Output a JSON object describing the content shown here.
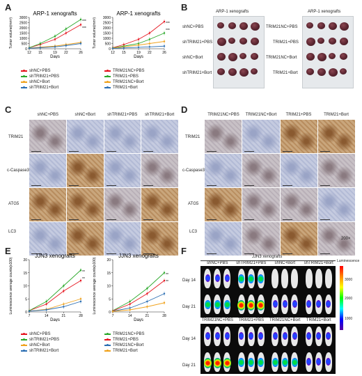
{
  "panels": {
    "A": "A",
    "B": "B",
    "C": "C",
    "D": "D",
    "E": "E",
    "F": "F"
  },
  "chart_data": [
    {
      "type": "line",
      "title": "ARP-1 xenografts",
      "xlabel": "Days",
      "ylabel": "Tumor volume(mm³)",
      "x": [
        12,
        15,
        19,
        22,
        26
      ],
      "xticks": [
        "12",
        "15",
        "19",
        "22",
        "26"
      ],
      "yticks": [
        "0",
        "500",
        "1000",
        "1500",
        "2000",
        "2500",
        "3000"
      ],
      "ylim": [
        0,
        3000
      ],
      "significance": [
        "***",
        "***"
      ],
      "series": [
        {
          "name": "shNC+PBS",
          "color": "#e6141e",
          "values": [
            100,
            400,
            900,
            1500,
            2300
          ]
        },
        {
          "name": "shTRIM21+PBS",
          "color": "#2aa82a",
          "values": [
            100,
            500,
            1200,
            1900,
            2800
          ]
        },
        {
          "name": "shNC+Bort",
          "color": "#f0a21c",
          "values": [
            50,
            150,
            250,
            400,
            600
          ]
        },
        {
          "name": "shTRIM21+Bort",
          "color": "#2c6fb3",
          "values": [
            50,
            100,
            180,
            300,
            500
          ]
        }
      ]
    },
    {
      "type": "line",
      "title": "ARP-1 xenografts",
      "xlabel": "Days",
      "ylabel": "Tumor volume(mm³)",
      "x": [
        12,
        15,
        19,
        22,
        26
      ],
      "xticks": [
        "12",
        "15",
        "19",
        "22",
        "26"
      ],
      "yticks": [
        "0",
        "500",
        "1000",
        "1500",
        "2000",
        "2500",
        "3000"
      ],
      "ylim": [
        0,
        3000
      ],
      "significance": [
        "***",
        "***"
      ],
      "series": [
        {
          "name": "TRIM21NC+PBS",
          "color": "#e6141e",
          "values": [
            100,
            400,
            900,
            1500,
            2600
          ]
        },
        {
          "name": "TRIM21+PBS",
          "color": "#2aa82a",
          "values": [
            80,
            250,
            500,
            900,
            1500
          ]
        },
        {
          "name": "TRIM21NC+Bort",
          "color": "#f0a21c",
          "values": [
            60,
            180,
            350,
            500,
            700
          ]
        },
        {
          "name": "TRIM21+Bort",
          "color": "#2c6fb3",
          "values": [
            40,
            80,
            140,
            180,
            250
          ]
        }
      ]
    },
    {
      "type": "line",
      "title": "JJN3 xenografts",
      "xlabel": "Days",
      "ylabel": "Luminescence average counts(x100)",
      "x": [
        7,
        14,
        21,
        28
      ],
      "xticks": [
        "7",
        "14",
        "21",
        "28"
      ],
      "yticks": [
        "0",
        "5",
        "10",
        "15",
        "20"
      ],
      "ylim": [
        0,
        20
      ],
      "significance": [
        "**",
        "**"
      ],
      "series": [
        {
          "name": "shNC+PBS",
          "color": "#e6141e",
          "values": [
            0.5,
            3,
            8,
            12
          ]
        },
        {
          "name": "shTRIM21+PBS",
          "color": "#2aa82a",
          "values": [
            0.5,
            4,
            10,
            16
          ]
        },
        {
          "name": "shNC+Bort",
          "color": "#f0a21c",
          "values": [
            0.3,
            1,
            3,
            5
          ]
        },
        {
          "name": "shTRIM21+Bort",
          "color": "#2c6fb3",
          "values": [
            0.3,
            0.8,
            2,
            4
          ]
        }
      ]
    },
    {
      "type": "line",
      "title": "JJN3 xenografts",
      "xlabel": "Days",
      "ylabel": "Luminescence average counts(x100)",
      "x": [
        7,
        14,
        21,
        28
      ],
      "xticks": [
        "7",
        "14",
        "21",
        "28"
      ],
      "yticks": [
        "0",
        "5",
        "10",
        "15",
        "20"
      ],
      "ylim": [
        0,
        20
      ],
      "significance": [
        "**",
        "**"
      ],
      "series": [
        {
          "name": "TRIM21NC+PBS",
          "color": "#2aa82a",
          "values": [
            0.5,
            4,
            9,
            15
          ]
        },
        {
          "name": "TRIM21+PBS",
          "color": "#e6141e",
          "values": [
            0.4,
            3,
            7,
            12
          ]
        },
        {
          "name": "TRIM21NC+Bort",
          "color": "#2c6fb3",
          "values": [
            0.3,
            1.5,
            4,
            7
          ]
        },
        {
          "name": "TRIM21+Bort",
          "color": "#f0a21c",
          "values": [
            0.2,
            0.8,
            2,
            3.5
          ]
        }
      ]
    }
  ],
  "panelB": {
    "left": {
      "title": "ARP-1 xenografts",
      "labels": [
        "shNC+PBS",
        "shTRIM21+PBS",
        "shNC+Bort",
        "shTRIM21+Bort"
      ]
    },
    "right": {
      "title": "ARP-1 xenografts",
      "labels": [
        "TRIM21NC+PBS",
        "TRIM21+PBS",
        "TRIM21NC+Bort",
        "TRIM21+Bort"
      ]
    }
  },
  "panelC": {
    "columns": [
      "shNC+PBS",
      "shNC+Bort",
      "shTRIM21+PBS",
      "shTRIM21+Bort"
    ],
    "rows": [
      "TRIM21",
      "c-Caspase3",
      "ATG5",
      "LC3"
    ]
  },
  "panelD": {
    "columns": [
      "TRIM21NC+PBS",
      "TRIM21NC+Bort",
      "TRIM21+PBS",
      "TRIM21+Bort"
    ],
    "rows": [
      "TRIM21",
      "c-Caspase3",
      "ATG5",
      "LC3"
    ]
  },
  "magnification": "200×",
  "panelF": {
    "title": "JJN3 xenografts",
    "group_top": [
      "shNC+PBS",
      "shTRIM21+PBS",
      "shNC+Bort",
      "shTRIM21+Bort"
    ],
    "group_bottom": [
      "TRIM21NC+PBS",
      "TRIM21+PBS",
      "TRIM21NC+Bort",
      "TRIM21+Bort"
    ],
    "days": [
      "Day 14",
      "Day 21",
      "Day 14",
      "Day 21"
    ],
    "colorbar_label": "Luminescence",
    "colorbar_ticks": [
      "3000",
      "2000",
      "1000"
    ]
  }
}
